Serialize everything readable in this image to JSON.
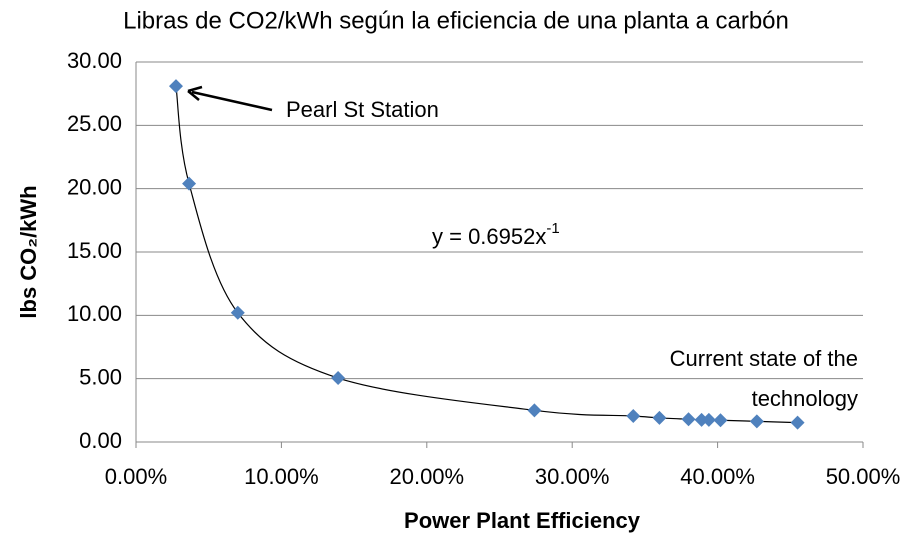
{
  "chart_data": {
    "type": "scatter",
    "title": "Libras de CO2/kWh según la eficiencia de una planta a carbón",
    "xlabel": "Power Plant Efficiency",
    "ylabel": "lbs CO₂/kWh",
    "x": [
      2.75,
      3.65,
      7.0,
      13.9,
      27.4,
      34.2,
      36.0,
      38.0,
      38.9,
      39.4,
      40.2,
      42.7,
      45.5
    ],
    "values": [
      28.1,
      20.4,
      10.2,
      5.05,
      2.5,
      2.05,
      1.9,
      1.8,
      1.75,
      1.75,
      1.72,
      1.63,
      1.53
    ],
    "color": "#4f81bd",
    "xlim": [
      0,
      50
    ],
    "xticks": [
      {
        "value": 0,
        "label": "0.00%"
      },
      {
        "value": 10,
        "label": "10.00%"
      },
      {
        "value": 20,
        "label": "20.00%"
      },
      {
        "value": 30,
        "label": "30.00%"
      },
      {
        "value": 40,
        "label": "40.00%"
      },
      {
        "value": 50,
        "label": "50.00%"
      }
    ],
    "ylim": [
      0,
      30
    ],
    "yticks": [
      {
        "value": 0,
        "label": "0.00"
      },
      {
        "value": 5,
        "label": "5.00"
      },
      {
        "value": 10,
        "label": "10.00"
      },
      {
        "value": 15,
        "label": "15.00"
      },
      {
        "value": 20,
        "label": "20.00"
      },
      {
        "value": 25,
        "label": "25.00"
      },
      {
        "value": 30,
        "label": "30.00"
      }
    ],
    "grid": true,
    "trendline": true,
    "equation": {
      "text": "y = 0.6952x",
      "superscript": "-1"
    },
    "annotations": [
      "Pearl St Station",
      "Current state of the",
      "technology"
    ]
  }
}
